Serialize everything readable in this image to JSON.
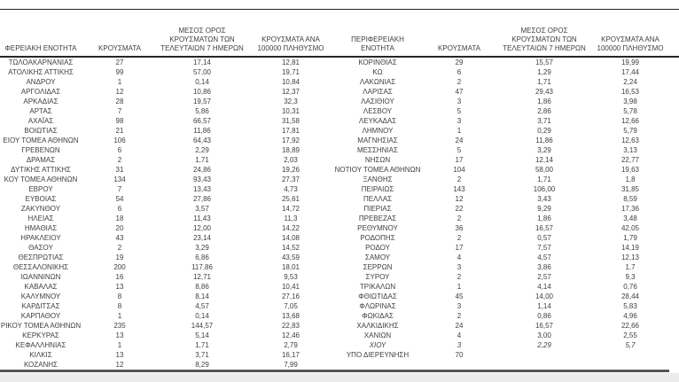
{
  "document": {
    "kind": "regional-covid-cases-table",
    "language": "el"
  },
  "colors": {
    "text": "#3f3f3f",
    "rule": "#262626",
    "thick_rule": "#555555",
    "footer_strip": "#ebebeb",
    "background": "#ffffff"
  },
  "table": {
    "headers": [
      "ΦΕΡΕΙΑΚΗ ΕΝΟΤΗΤΑ",
      "ΚΡΟΥΣΜΑΤΑ",
      "ΜΕΣΟΣ ΟΡΟΣ\nΚΡΟΥΣΜΑΤΩΝ ΤΩΝ\nΤΕΛΕΥΤΑΙΩΝ 7 ΗΜΕΡΩΝ",
      "ΚΡΟΥΣΜΑΤΑ ΑΝΑ\n100000 ΠΛΗΘΥΣΜΟ",
      "ΠΕΡΙΦΕΡΕΙΑΚΗ ΕΝΟΤΗΤΑ",
      "ΚΡΟΥΣΜΑΤΑ",
      "ΜΕΣΟΣ ΟΡΟΣ\nΚΡΟΥΣΜΑΤΩΝ ΤΩΝ\nΤΕΛΕΥΤΑΙΩΝ 7 ΗΜΕΡΩΝ",
      "ΚΡΟΥΣΜΑΤΑ ΑΝΑ\n100000 ΠΛΗΘΥΣΜΟ"
    ],
    "left": {
      "rows": [
        [
          "ΤΩΛΟΑΚΑΡΝΑΝΙΑΣ",
          "27",
          "17,14",
          "12,81"
        ],
        [
          "ΑΤΟΛΙΚΗΣ ΑΤΤΙΚΗΣ",
          "99",
          "57,00",
          "19,71"
        ],
        [
          "ΑΝΔΡΟΥ",
          "1",
          "0,14",
          "10,84"
        ],
        [
          "ΑΡΓΟΛΙΔΑΣ",
          "12",
          "10,86",
          "12,37"
        ],
        [
          "ΑΡΚΑΔΙΑΣ",
          "28",
          "19,57",
          "32,3"
        ],
        [
          "ΑΡΤΑΣ",
          "7",
          "5,86",
          "10,31"
        ],
        [
          "ΑΧΑΪΑΣ",
          "98",
          "66,57",
          "31,58"
        ],
        [
          "ΒΟΙΩΤΙΑΣ",
          "21",
          "11,86",
          "17,81"
        ],
        [
          "ΕΙΟΥ ΤΟΜΕΑ ΑΘΗΝΩΝ",
          "106",
          "64,43",
          "17,92"
        ],
        [
          "ΓΡΕΒΕΝΩΝ",
          "6",
          "2,29",
          "18,89"
        ],
        [
          "ΔΡΑΜΑΣ",
          "2",
          "1,71",
          "2,03"
        ],
        [
          "ΔΥΤΙΚΗΣ ΑΤΤΙΚΗΣ",
          "31",
          "24,86",
          "19,26"
        ],
        [
          "ΚΟΥ ΤΟΜΕΑ ΑΘΗΝΩΝ",
          "134",
          "93,43",
          "27,37"
        ],
        [
          "ΕΒΡΟΥ",
          "7",
          "13,43",
          "4,73"
        ],
        [
          "ΕΥΒΟΙΑΣ",
          "54",
          "27,86",
          "25,61"
        ],
        [
          "ΖΑΚΥΝΘΟΥ",
          "6",
          "3,57",
          "14,72"
        ],
        [
          "ΗΛΕΙΑΣ",
          "18",
          "11,43",
          "11,3"
        ],
        [
          "ΗΜΑΘΙΑΣ",
          "20",
          "12,00",
          "14,22"
        ],
        [
          "ΗΡΑΚΛΕΙΟΥ",
          "43",
          "23,14",
          "14,08"
        ],
        [
          "ΘΑΣΟΥ",
          "2",
          "3,29",
          "14,52"
        ],
        [
          "ΘΕΣΠΡΩΤΙΑΣ",
          "19",
          "6,86",
          "43,59"
        ],
        [
          "ΘΕΣΣΑΛΟΝΙΚΗΣ",
          "200",
          "117,86",
          "18,01"
        ],
        [
          "ΙΩΑΝΝΙΝΩΝ",
          "16",
          "12,71",
          "9,53"
        ],
        [
          "ΚΑΒΑΛΑΣ",
          "13",
          "8,86",
          "10,41"
        ],
        [
          "ΚΑΛΥΜΝΟΥ",
          "8",
          "8,14",
          "27,16"
        ],
        [
          "ΚΑΡΔΙΤΣΑΣ",
          "8",
          "4,57",
          "7,05"
        ],
        [
          "ΚΑΡΠΑΘΟΥ",
          "1",
          "0,14",
          "13,68"
        ],
        [
          "ΡΙΚΟΥ ΤΟΜΕΑ ΑΘΗΝΩΝ",
          "235",
          "144,57",
          "22,83"
        ],
        [
          "ΚΕΡΚΥΡΑΣ",
          "13",
          "5,14",
          "12,46"
        ],
        [
          "ΚΕΦΑΛΛΗΝΙΑΣ",
          "1",
          "1,71",
          "2,79"
        ],
        [
          "ΚΙΛΚΙΣ",
          "13",
          "3,71",
          "16,17"
        ],
        [
          "ΚΟΖΑΝΗΣ",
          "12",
          "8,29",
          "7,99"
        ]
      ]
    },
    "right": {
      "rows": [
        [
          "ΚΟΡΙΝΘΙΑΣ",
          "29",
          "15,57",
          "19,99"
        ],
        [
          "ΚΩ",
          "6",
          "1,29",
          "17,44"
        ],
        [
          "ΛΑΚΩΝΙΑΣ",
          "2",
          "1,71",
          "2,24"
        ],
        [
          "ΛΑΡΙΣΑΣ",
          "47",
          "29,43",
          "16,53"
        ],
        [
          "ΛΑΣΙΘΙΟΥ",
          "3",
          "1,86",
          "3,98"
        ],
        [
          "ΛΕΣΒΟΥ",
          "5",
          "2,86",
          "5,78"
        ],
        [
          "ΛΕΥΚΑΔΑΣ",
          "3",
          "3,71",
          "12,66"
        ],
        [
          "ΛΗΜΝΟΥ",
          "1",
          "0,29",
          "5,79"
        ],
        [
          "ΜΑΓΝΗΣΙΑΣ",
          "24",
          "11,86",
          "12,63"
        ],
        [
          "ΜΕΣΣΗΝΙΑΣ",
          "5",
          "3,29",
          "3,13"
        ],
        [
          "ΝΗΣΩΝ",
          "17",
          "12,14",
          "22,77"
        ],
        [
          "ΝΟΤΙΟΥ ΤΟΜΕΑ ΑΘΗΝΩΝ",
          "104",
          "58,00",
          "19,63"
        ],
        [
          "ΞΑΝΘΗΣ",
          "2",
          "1,71",
          "1,8"
        ],
        [
          "ΠΕΙΡΑΙΩΣ",
          "143",
          "106,00",
          "31,85"
        ],
        [
          "ΠΕΛΛΑΣ",
          "12",
          "3,43",
          "8,59"
        ],
        [
          "ΠΙΕΡΙΑΣ",
          "22",
          "9,29",
          "17,36"
        ],
        [
          "ΠΡΕΒΕΖΑΣ",
          "2",
          "1,86",
          "3,48"
        ],
        [
          "ΡΕΘΥΜΝΟΥ",
          "36",
          "16,57",
          "42,05"
        ],
        [
          "ΡΟΔΟΠΗΣ",
          "2",
          "0,57",
          "1,79"
        ],
        [
          "ΡΟΔΟΥ",
          "17",
          "7,57",
          "14,19"
        ],
        [
          "ΣΑΜΟΥ",
          "4",
          "4,57",
          "12,13"
        ],
        [
          "ΣΕΡΡΩΝ",
          "3",
          "3,86",
          "1,7"
        ],
        [
          "ΣΥΡΟΥ",
          "2",
          "2,57",
          "9,3"
        ],
        [
          "ΤΡΙΚΑΛΩΝ",
          "1",
          "4,14",
          "0,76"
        ],
        [
          "ΦΘΙΩΤΙΔΑΣ",
          "45",
          "14,00",
          "28,44"
        ],
        [
          "ΦΛΩΡΙΝΑΣ",
          "3",
          "1,14",
          "5,83"
        ],
        [
          "ΦΩΚΙΔΑΣ",
          "2",
          "0,86",
          "4,96"
        ],
        [
          "ΧΑΛΚΙΔΙΚΗΣ",
          "24",
          "16,57",
          "22,66"
        ],
        [
          "ΧΑΝΙΩΝ",
          "4",
          "3,00",
          "2,55"
        ],
        [
          "ΧΙΟΥ",
          "3",
          "2,29",
          "5,7"
        ],
        [
          "ΥΠΟ ΔΙΕΡΕΥΝΗΣΗ",
          "70",
          "",
          ""
        ]
      ],
      "italic_region": "ΧΙΟΥ"
    }
  }
}
